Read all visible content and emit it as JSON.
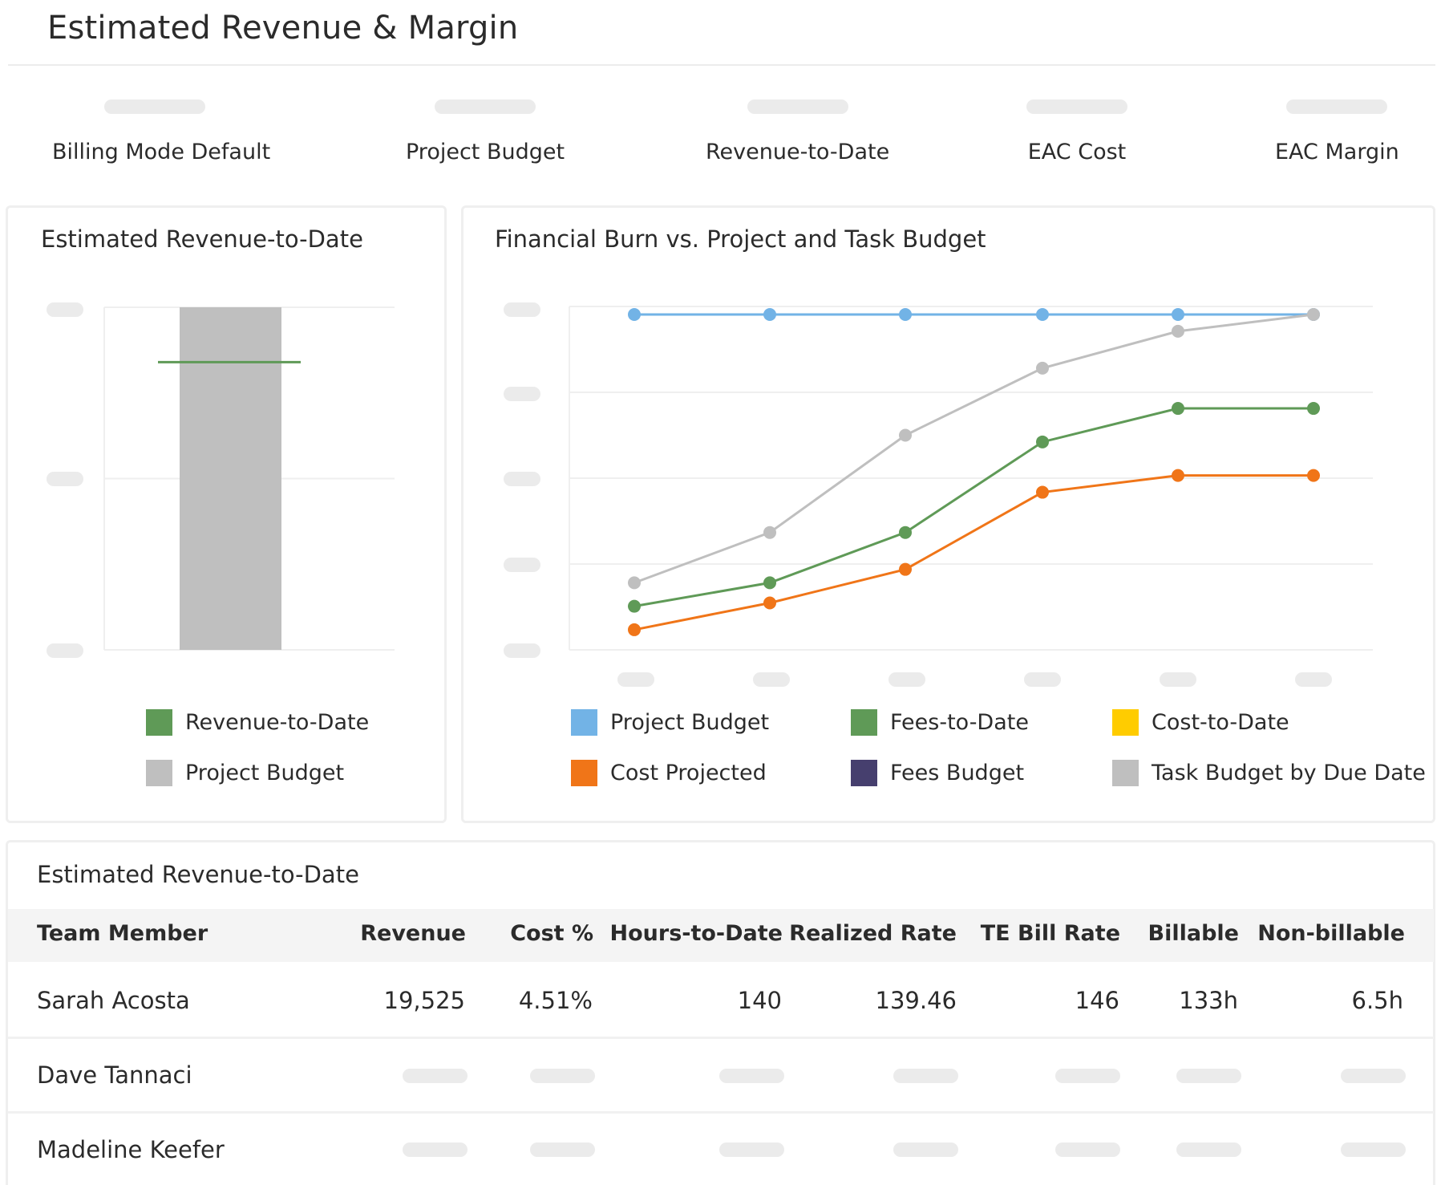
{
  "page": {
    "title": "Estimated Revenue & Margin"
  },
  "kpis": [
    {
      "label": "Billing Mode Default"
    },
    {
      "label": "Project Budget"
    },
    {
      "label": "Revenue-to-Date"
    },
    {
      "label": "EAC Cost"
    },
    {
      "label": "EAC Margin"
    }
  ],
  "revenue_card": {
    "title": "Estimated Revenue-to-Date",
    "legend": [
      {
        "label": "Revenue-to-Date",
        "color": "#5f9a57"
      },
      {
        "label": "Project Budget",
        "color": "#bfbfbf"
      }
    ]
  },
  "burn_card": {
    "title": "Financial Burn vs. Project and Task Budget",
    "legend": [
      {
        "label": "Project Budget",
        "color": "#72b3e6"
      },
      {
        "label": "Fees-to-Date",
        "color": "#5f9a57"
      },
      {
        "label": "Cost-to-Date",
        "color": "#ffcc00"
      },
      {
        "label": "Cost Projected",
        "color": "#f07518"
      },
      {
        "label": "Fees Budget",
        "color": "#463f6e"
      },
      {
        "label": "Task Budget by Due Date",
        "color": "#bfbfbf"
      }
    ]
  },
  "chart_data": [
    {
      "type": "bar",
      "categories": [
        ""
      ],
      "series": [
        {
          "name": "Project Budget",
          "values": [
            1.0
          ],
          "color": "#bfbfbf"
        },
        {
          "name": "Revenue-to-Date",
          "values": [
            0.84
          ],
          "color": "#5f9a57"
        }
      ],
      "ylim": [
        0,
        1.0
      ],
      "grid": true,
      "legend_position": "bottom"
    },
    {
      "type": "line",
      "x": [
        1,
        2,
        3,
        4,
        5,
        6
      ],
      "series": [
        {
          "name": "Project Budget",
          "values": [
            1.0,
            1.0,
            1.0,
            1.0,
            1.0,
            1.0
          ],
          "color": "#72b3e6"
        },
        {
          "name": "Task Budget by Due Date",
          "values": [
            0.2,
            0.35,
            0.64,
            0.84,
            0.95,
            1.0
          ],
          "color": "#bfbfbf"
        },
        {
          "name": "Fees-to-Date",
          "values": [
            0.13,
            0.2,
            0.35,
            0.62,
            0.72,
            0.72
          ],
          "color": "#5f9a57"
        },
        {
          "name": "Cost Projected",
          "values": [
            0.06,
            0.14,
            0.24,
            0.47,
            0.52,
            0.52
          ],
          "color": "#f07518"
        }
      ],
      "ylim": [
        0,
        1.0
      ],
      "grid": true,
      "legend_position": "bottom"
    }
  ],
  "table": {
    "title": "Estimated Revenue-to-Date",
    "columns": [
      "Team Member",
      "Revenue",
      "Cost %",
      "Hours-to-Date",
      "Realized Rate",
      "TE Bill Rate",
      "Billable",
      "Non-billable"
    ],
    "rows": [
      {
        "name": "Sarah Acosta",
        "revenue": "19,525",
        "cost_pct": "4.51%",
        "hours": "140",
        "realized_rate": "139.46",
        "te_bill_rate": "146",
        "billable": "133h",
        "non_billable": "6.5h"
      },
      {
        "name": "Dave Tannaci"
      },
      {
        "name": "Madeline Keefer"
      }
    ]
  }
}
